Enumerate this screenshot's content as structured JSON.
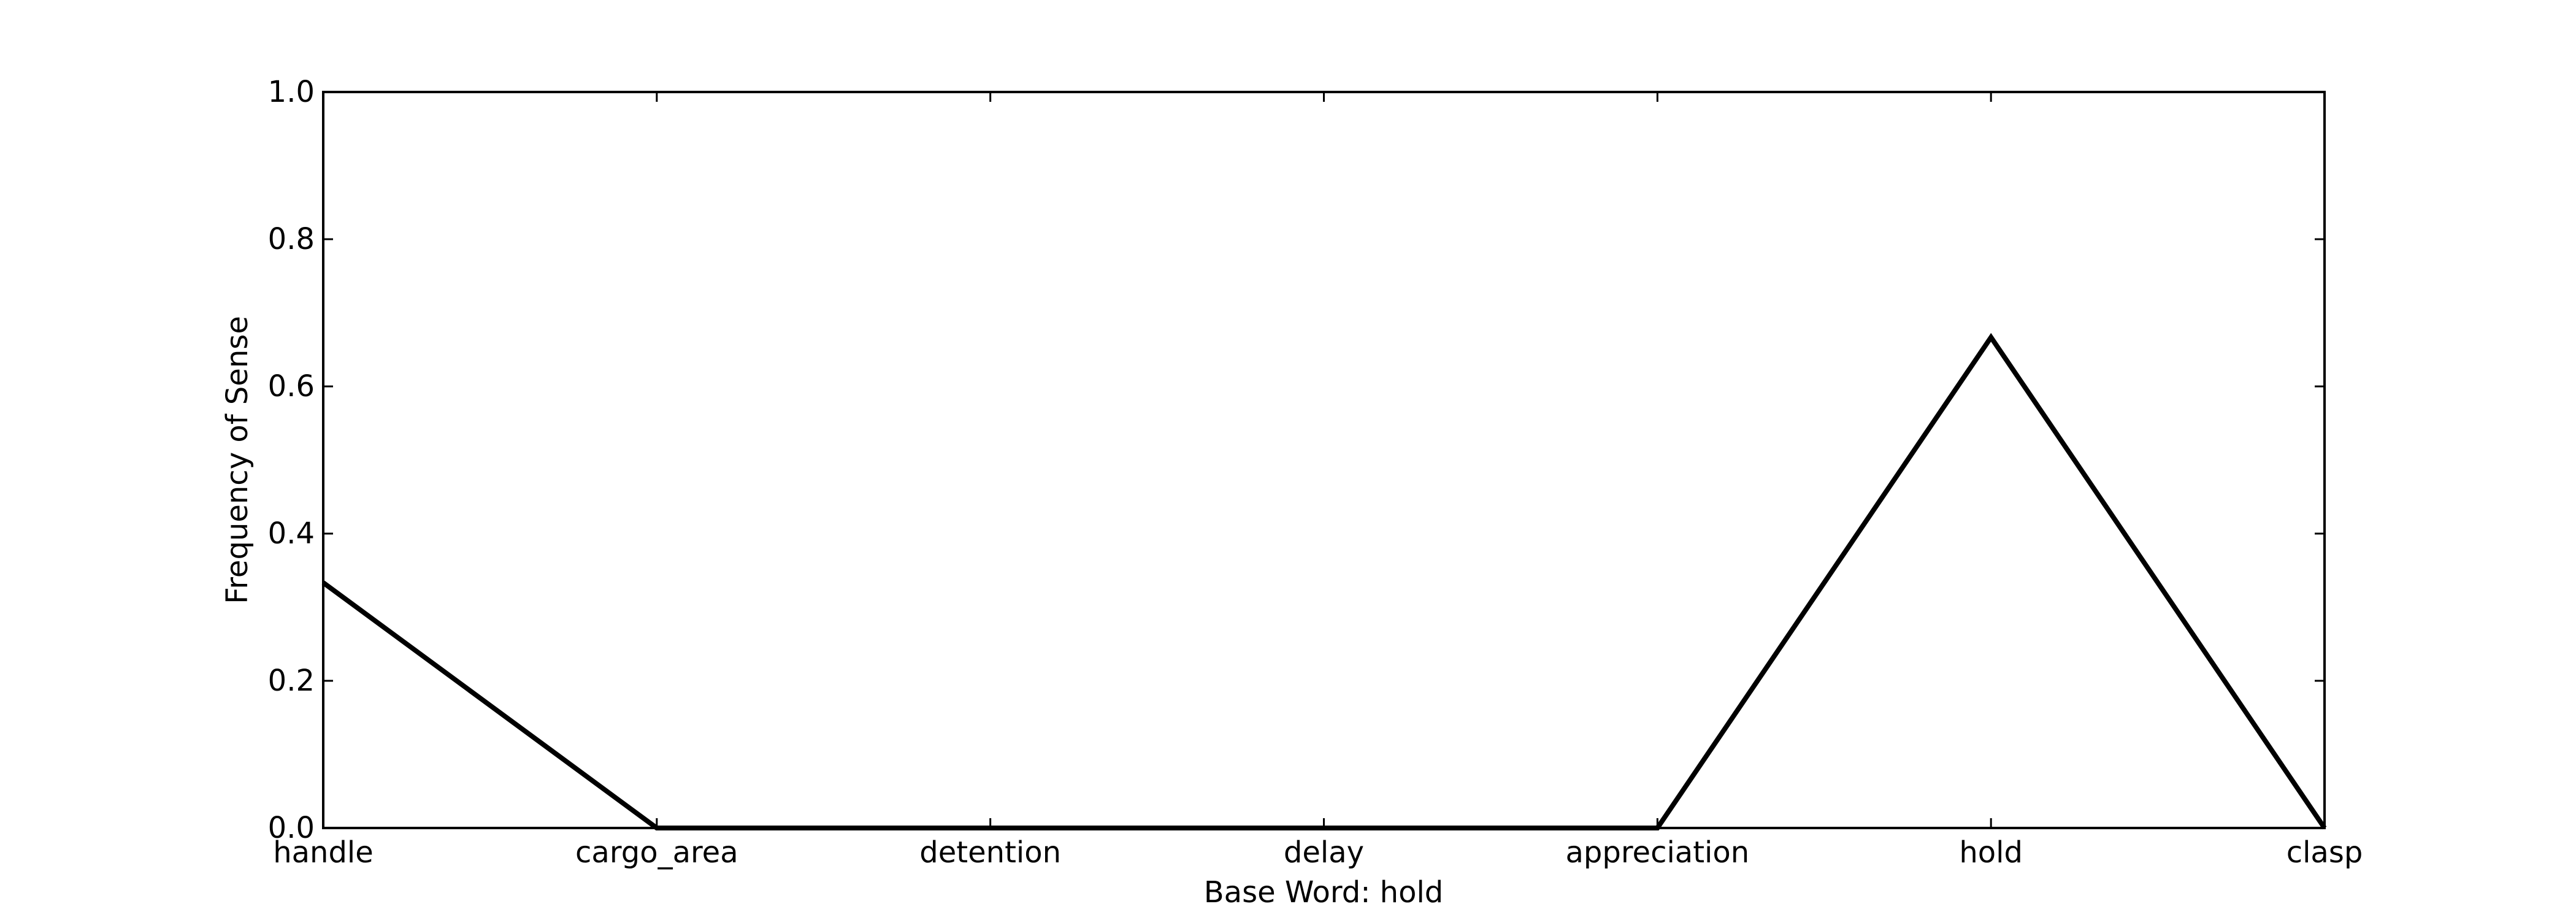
{
  "chart_data": {
    "type": "line",
    "title": "",
    "xlabel": "Base Word: hold",
    "ylabel": "Frequency of Sense",
    "categories": [
      "handle",
      "cargo_area",
      "detention",
      "delay",
      "appreciation",
      "hold",
      "clasp"
    ],
    "series": [
      {
        "values": [
          0.3333,
          0.0,
          0.0,
          0.0,
          0.0,
          0.6667,
          0.0
        ],
        "color": "#000000"
      }
    ],
    "ylim": [
      0.0,
      1.0
    ],
    "yticks": [
      "0.0",
      "0.2",
      "0.4",
      "0.6",
      "0.8",
      "1.0"
    ],
    "grid": false,
    "legend": "none"
  }
}
